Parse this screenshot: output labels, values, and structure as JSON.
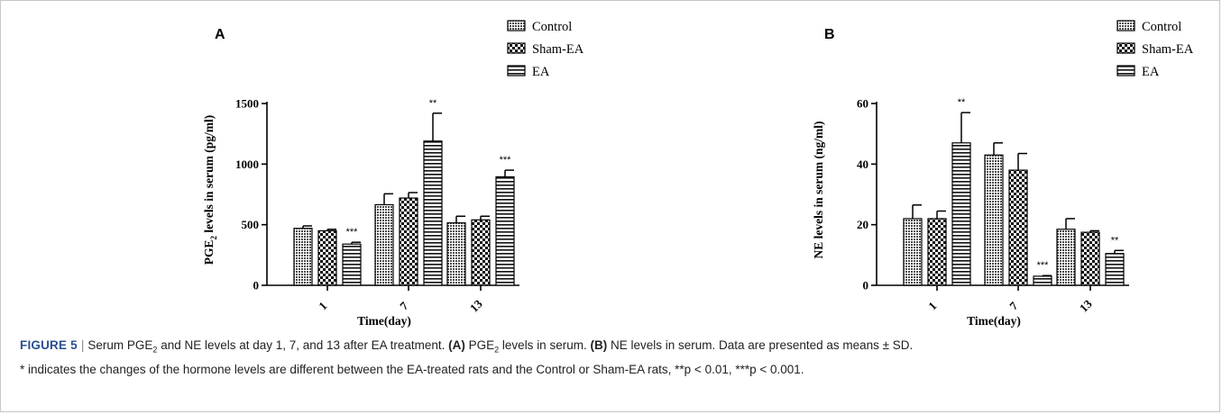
{
  "chart_data": [
    {
      "type": "bar",
      "panel_label": "A",
      "categories": [
        "1",
        "7",
        "13"
      ],
      "xlabel": "Time(day)",
      "ylabel": "PGE",
      "ylabel_sub": "2",
      "ylabel_rest": " levels in serum (pg/ml)",
      "ylim": [
        0,
        1500
      ],
      "yticks": [
        0,
        500,
        1000,
        1500
      ],
      "legend_position": "top-right",
      "series": [
        {
          "name": "Control",
          "pattern": "dense",
          "values": [
            470,
            665,
            515
          ],
          "errors": [
            20,
            90,
            55
          ],
          "annotations": [
            "",
            "",
            ""
          ]
        },
        {
          "name": "Sham-EA",
          "pattern": "check",
          "values": [
            450,
            720,
            540
          ],
          "errors": [
            12,
            45,
            30
          ],
          "annotations": [
            "",
            "",
            ""
          ]
        },
        {
          "name": "EA",
          "pattern": "hstripe",
          "values": [
            340,
            1190,
            895
          ],
          "errors": [
            15,
            230,
            55
          ],
          "annotations": [
            "***",
            "**",
            "***"
          ]
        }
      ]
    },
    {
      "type": "bar",
      "panel_label": "B",
      "categories": [
        "1",
        "7",
        "13"
      ],
      "xlabel": "Time(day)",
      "ylabel": "NE levels in serum (ng/ml)",
      "ylabel_sub": "",
      "ylabel_rest": "",
      "ylim": [
        0,
        60
      ],
      "yticks": [
        0,
        20,
        40,
        60
      ],
      "legend_position": "top-right",
      "series": [
        {
          "name": "Control",
          "pattern": "dense",
          "values": [
            22,
            43,
            18.5
          ],
          "errors": [
            4.5,
            4,
            3.5
          ],
          "annotations": [
            "",
            "",
            ""
          ]
        },
        {
          "name": "Sham-EA",
          "pattern": "check",
          "values": [
            22,
            38,
            17.5
          ],
          "errors": [
            2.5,
            5.5,
            0.5
          ],
          "annotations": [
            "",
            "",
            ""
          ]
        },
        {
          "name": "EA",
          "pattern": "hstripe",
          "values": [
            47,
            3,
            10.5
          ],
          "errors": [
            10,
            0.2,
            1
          ],
          "annotations": [
            "**",
            "***",
            "**"
          ]
        }
      ]
    }
  ],
  "caption": {
    "figure_label": "FIGURE 5",
    "separator": "|",
    "line1_a": "Serum PGE",
    "line1_sub": "2",
    "line1_b": " and NE levels at day 1, 7, and 13 after EA treatment.",
    "label_a": "(A)",
    "text_a_1": " PGE",
    "text_a_sub": "2",
    "text_a_2": " levels in serum.",
    "label_b": "(B)",
    "text_b": " NE levels in serum. Data are presented as means ± SD.",
    "line2": "* indicates the changes of the hormone levels are different between the EA-treated rats and the Control or Sham-EA rats, **p < 0.01, ***p < 0.001."
  }
}
